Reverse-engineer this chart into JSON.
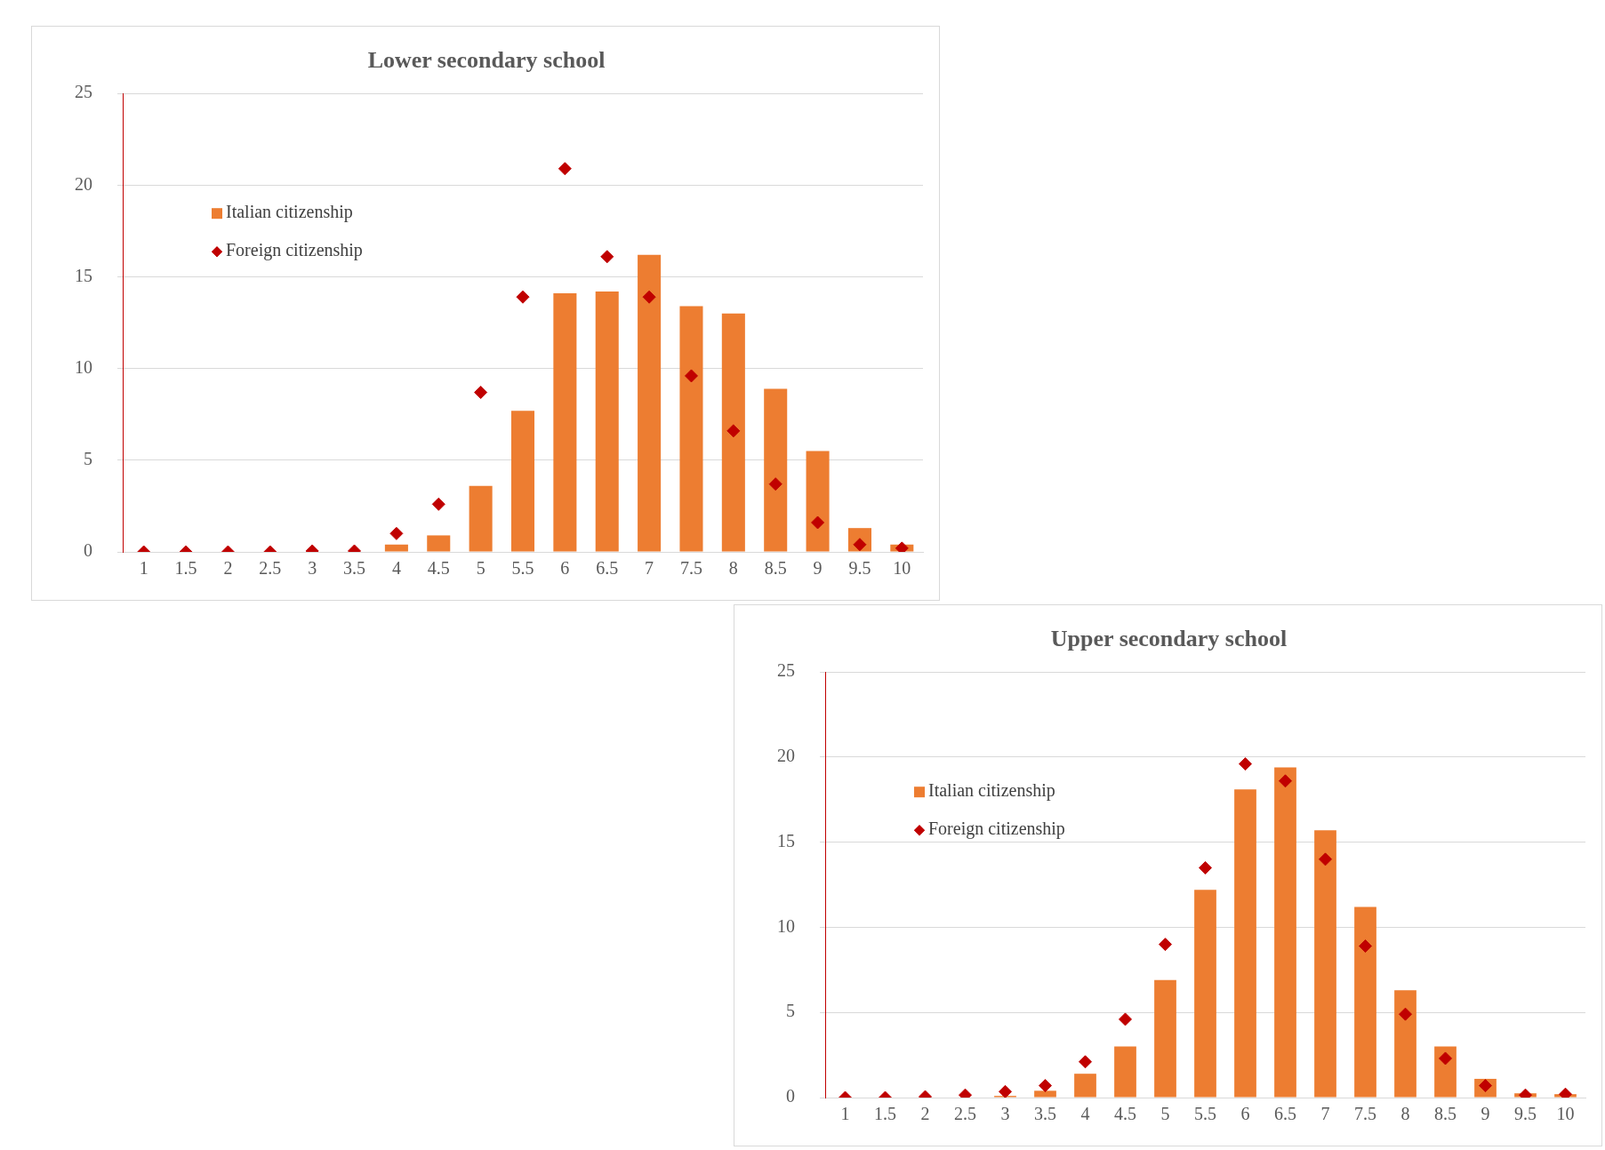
{
  "chart_data": [
    {
      "type": "bar",
      "title": "Lower secondary school",
      "categories": [
        "1",
        "1.5",
        "2",
        "2.5",
        "3",
        "3.5",
        "4",
        "4.5",
        "5",
        "5.5",
        "6",
        "6.5",
        "7",
        "7.5",
        "8",
        "8.5",
        "9",
        "9.5",
        "10"
      ],
      "series": [
        {
          "name": "Italian citizenship",
          "color": "#ed7d31",
          "values": [
            0,
            0,
            0,
            0,
            0,
            0,
            0.4,
            0.9,
            3.6,
            7.7,
            14.1,
            14.2,
            16.2,
            13.4,
            13.0,
            8.9,
            5.5,
            1.3,
            0.4
          ]
        },
        {
          "name": "Foreign citizenship",
          "type": "scatter",
          "color": "#c00000",
          "values": [
            0,
            0,
            0,
            0,
            0.05,
            0.05,
            1.0,
            2.6,
            8.7,
            13.9,
            20.9,
            16.1,
            13.9,
            9.6,
            6.6,
            3.7,
            1.6,
            0.4,
            0.2
          ]
        }
      ],
      "ylim": [
        0,
        25
      ],
      "yticks": [
        0,
        5,
        10,
        15,
        20,
        25
      ],
      "grid": "y",
      "legend": "top left",
      "marker": "diamond"
    },
    {
      "type": "bar",
      "title": "Upper secondary school",
      "categories": [
        "1",
        "1.5",
        "2",
        "2.5",
        "3",
        "3.5",
        "4",
        "4.5",
        "5",
        "5.5",
        "6",
        "6.5",
        "7",
        "7.5",
        "8",
        "8.5",
        "9",
        "9.5",
        "10"
      ],
      "series": [
        {
          "name": "Italian citizenship",
          "color": "#ed7d31",
          "values": [
            0,
            0,
            0,
            0,
            0.1,
            0.4,
            1.4,
            3.0,
            6.9,
            12.2,
            18.1,
            19.4,
            15.7,
            11.2,
            6.3,
            3.0,
            1.1,
            0.25,
            0.2
          ]
        },
        {
          "name": "Foreign citizenship",
          "type": "scatter",
          "color": "#c00000",
          "values": [
            0,
            0,
            0.05,
            0.15,
            0.35,
            0.7,
            2.1,
            4.6,
            9.0,
            13.5,
            19.6,
            18.6,
            14.0,
            8.9,
            4.9,
            2.3,
            0.7,
            0.15,
            0.2
          ]
        }
      ],
      "ylim": [
        0,
        25
      ],
      "yticks": [
        0,
        5,
        10,
        15,
        20,
        25
      ],
      "grid": "y",
      "legend": "top left",
      "marker": "diamond"
    }
  ]
}
